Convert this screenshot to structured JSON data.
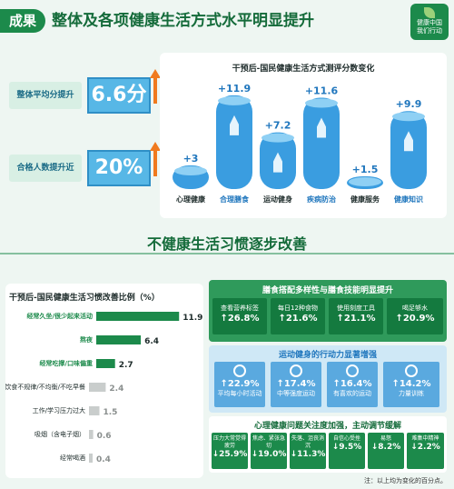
{
  "header": {
    "tag": "成果",
    "title": "整体及各项健康生活方式水平明显提升",
    "logo_text_1": "健康中国",
    "logo_text_2": "我们行动"
  },
  "stats": [
    {
      "label": "整体平均分提升",
      "value": "6.6分"
    },
    {
      "label": "合格人数提升近",
      "value": "20%"
    }
  ],
  "chart_data": [
    {
      "type": "bar",
      "title": "干预后-国民健康生活方式测评分数变化",
      "categories": [
        "心理健康",
        "合理膳食",
        "运动健身",
        "疾病防治",
        "健康服务",
        "健康知识"
      ],
      "values": [
        3,
        11.9,
        7.2,
        11.6,
        1.5,
        9.9
      ],
      "value_labels": [
        "+3",
        "+11.9",
        "+7.2",
        "+11.6",
        "+1.5",
        "+9.9"
      ],
      "colors": {
        "bar": "#3a9de0",
        "bar_dark": "#1f76bd"
      }
    },
    {
      "type": "bar",
      "title": "干预后-国民健康生活习惯改善比例（%）",
      "categories": [
        "经常久坐/很少起来活动",
        "熬夜",
        "经常吃撑/口味偏重",
        "饮食不规律/不均衡/不吃早餐",
        "工作/学习压力过大",
        "吸烟（含电子烟）",
        "经常喝酒"
      ],
      "values": [
        11.9,
        6.4,
        2.7,
        2.4,
        1.5,
        0.6,
        0.4
      ],
      "value_labels": [
        "11.9",
        "6.4",
        "2.7",
        "2.4",
        "1.5",
        "0.6",
        "0.4"
      ],
      "highlight_count": 3,
      "colors": {
        "highlight": "#1c8a4b",
        "muted": "#c9cdcc",
        "highlight_label": "#1c8a4b",
        "muted_label": "#8a8f8e"
      }
    }
  ],
  "section2": {
    "title": "不健康生活习惯逐步改善"
  },
  "diet": {
    "title": "膳食搭配多样性与膳食技能明显提升",
    "items": [
      {
        "label": "查看营养标签",
        "pct": "↑26.8%"
      },
      {
        "label": "每日12种食物",
        "pct": "↑21.6%"
      },
      {
        "label": "使用刻度工具",
        "pct": "↑21.1%"
      },
      {
        "label": "喝足够水",
        "pct": "↑20.9%"
      }
    ]
  },
  "exercise": {
    "title": "运动健身的行动力显著增强",
    "items": [
      {
        "pct": "↑22.9%",
        "label": "平均每小时活动"
      },
      {
        "pct": "↑17.4%",
        "label": "中等强度运动"
      },
      {
        "pct": "↑16.4%",
        "label": "有喜欢的运动"
      },
      {
        "pct": "↑14.2%",
        "label": "力量训练"
      }
    ]
  },
  "mental": {
    "title": "心理健康问题关注度加强，主动调节缓解",
    "items": [
      {
        "label": "压力大常觉得疲劳",
        "pct": "↓25.9%"
      },
      {
        "label": "焦虑、紧张急切",
        "pct": "↓19.0%"
      },
      {
        "label": "失落、沮丧消沉",
        "pct": "↓11.3%"
      },
      {
        "label": "自信心受挫",
        "pct": "↓9.5%"
      },
      {
        "label": "易怒",
        "pct": "↓8.2%"
      },
      {
        "label": "难集中精神",
        "pct": "↓2.2%"
      }
    ]
  },
  "note": "注：以上均为变化的百分点。",
  "colors": {
    "brand": "#1c8a4b",
    "accent_blue": "#57b7e6",
    "bg": "#eef6f2"
  }
}
